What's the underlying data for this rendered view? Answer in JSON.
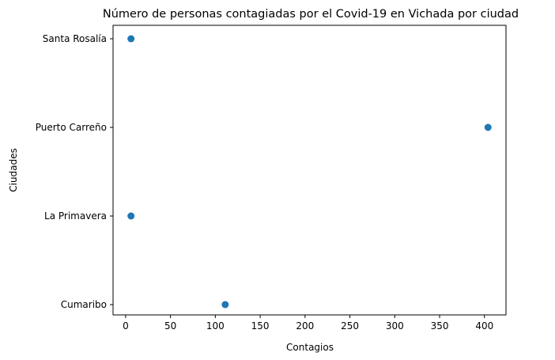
{
  "chart_data": {
    "type": "scatter",
    "title": "Número de personas contagiadas por el Covid-19 en Vichada por ciudad",
    "xlabel": "Contagios",
    "ylabel": "Ciudades",
    "categories": [
      "Cumaribo",
      "La Primavera",
      "Puerto Carreño",
      "Santa Rosalía"
    ],
    "values": [
      111,
      6,
      404,
      6
    ],
    "xlim": [
      -14,
      424
    ],
    "xticks": [
      0,
      50,
      100,
      150,
      200,
      250,
      300,
      350,
      400
    ],
    "grid": false,
    "marker_color": "#1f77b4"
  }
}
